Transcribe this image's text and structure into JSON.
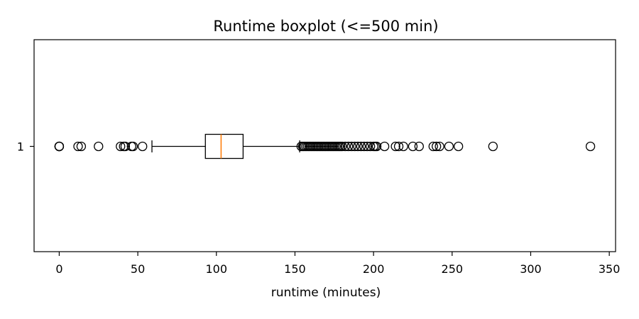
{
  "chart_data": {
    "type": "boxplot",
    "title": "Runtime boxplot (<=500 min)",
    "xlabel": "runtime (minutes)",
    "ylabel": "",
    "xlim": [
      -16,
      354
    ],
    "x_ticks": [
      0,
      50,
      100,
      150,
      200,
      250,
      300,
      350
    ],
    "y_ticks": [
      "1"
    ],
    "orientation": "horizontal",
    "grid": false,
    "series": [
      {
        "category": "1",
        "whisker_low": 59,
        "q1": 93,
        "median": 103,
        "q3": 117,
        "whisker_high": 153,
        "fliers": [
          0,
          0,
          0,
          0,
          12,
          14,
          25,
          39,
          41,
          42,
          46,
          47,
          53,
          154,
          155,
          156,
          157,
          158,
          159,
          160,
          161,
          162,
          163,
          164,
          165,
          166,
          167,
          168,
          169,
          170,
          171,
          172,
          173,
          174,
          175,
          176,
          177,
          178,
          179,
          180,
          182,
          184,
          186,
          188,
          190,
          192,
          194,
          196,
          198,
          200,
          201,
          202,
          207,
          214,
          216,
          219,
          225,
          229,
          238,
          240,
          242,
          248,
          254,
          276,
          338
        ]
      }
    ],
    "colors": {
      "box": "#000000",
      "median": "#ff7f0e",
      "flier": "#000000"
    }
  }
}
